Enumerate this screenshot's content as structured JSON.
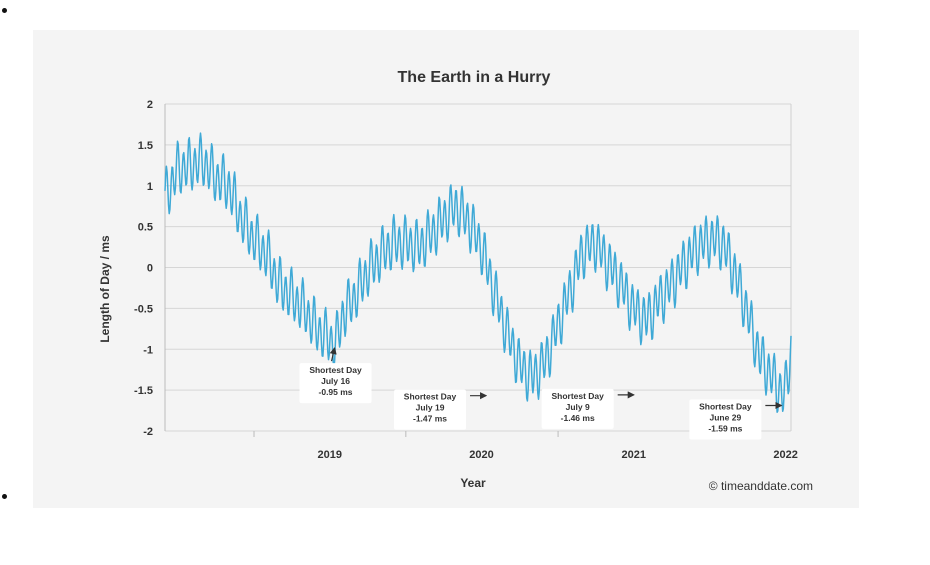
{
  "chart_data": {
    "type": "line",
    "title": "The Earth in a Hurry",
    "xlabel": "Year",
    "ylabel": "Length of Day / ms",
    "ylim": [
      -2,
      2
    ],
    "yticks": [
      "2",
      "1.5",
      "1",
      "0.5",
      "0",
      "-0.5",
      "-1",
      "-1.5",
      "-2"
    ],
    "xlim": [
      "2018-06-01",
      "2022-07-15"
    ],
    "xticks": [
      {
        "label": "2019",
        "date": "2019-01-01"
      },
      {
        "label": "2020",
        "date": "2020-01-01"
      },
      {
        "label": "2021",
        "date": "2021-01-01"
      },
      {
        "label": "2022",
        "date": "2022-01-01"
      }
    ],
    "grid": true,
    "series": [
      {
        "color": "#3fa9d6",
        "points": [
          [
            "2018-06-01",
            0.85
          ],
          [
            "2018-07-01",
            1.2
          ],
          [
            "2018-08-01",
            1.25
          ],
          [
            "2018-09-01",
            1.3
          ],
          [
            "2018-10-01",
            1.1
          ],
          [
            "2018-11-01",
            1.0
          ],
          [
            "2018-12-01",
            0.6
          ],
          [
            "2019-01-01",
            0.35
          ],
          [
            "2019-02-01",
            0.15
          ],
          [
            "2019-03-01",
            -0.2
          ],
          [
            "2019-04-01",
            -0.35
          ],
          [
            "2019-05-01",
            -0.5
          ],
          [
            "2019-06-01",
            -0.75
          ],
          [
            "2019-07-16",
            -0.95
          ],
          [
            "2019-08-01",
            -0.6
          ],
          [
            "2019-09-01",
            -0.35
          ],
          [
            "2019-10-01",
            -0.05
          ],
          [
            "2019-11-01",
            0.15
          ],
          [
            "2019-12-01",
            0.3
          ],
          [
            "2020-01-01",
            0.3
          ],
          [
            "2020-02-01",
            0.25
          ],
          [
            "2020-03-01",
            0.4
          ],
          [
            "2020-04-01",
            0.6
          ],
          [
            "2020-05-01",
            0.75
          ],
          [
            "2020-06-01",
            0.55
          ],
          [
            "2020-07-01",
            0.25
          ],
          [
            "2020-08-01",
            -0.3
          ],
          [
            "2020-09-01",
            -0.8
          ],
          [
            "2020-10-01",
            -1.2
          ],
          [
            "2020-11-01",
            -1.35
          ],
          [
            "2020-12-01",
            -1.15
          ],
          [
            "2021-01-01",
            -0.7
          ],
          [
            "2021-02-01",
            -0.25
          ],
          [
            "2021-03-01",
            0.2
          ],
          [
            "2021-04-01",
            0.3
          ],
          [
            "2021-05-01",
            0.05
          ],
          [
            "2021-06-01",
            -0.2
          ],
          [
            "2021-07-01",
            -0.5
          ],
          [
            "2021-08-01",
            -0.65
          ],
          [
            "2021-09-01",
            -0.4
          ],
          [
            "2021-10-01",
            -0.2
          ],
          [
            "2021-11-01",
            0.05
          ],
          [
            "2021-12-01",
            0.25
          ],
          [
            "2022-01-01",
            0.35
          ],
          [
            "2022-02-01",
            0.3
          ],
          [
            "2022-03-01",
            -0.05
          ],
          [
            "2022-04-01",
            -0.55
          ],
          [
            "2022-05-01",
            -1.1
          ],
          [
            "2022-06-01",
            -1.35
          ],
          [
            "2022-06-29",
            -1.59
          ],
          [
            "2022-07-15",
            -1.0
          ]
        ]
      }
    ],
    "annotations": [
      {
        "lines": [
          "Shortest Day",
          "July 16",
          "-0.95 ms"
        ],
        "date": "2019-07-16",
        "value": -0.95
      },
      {
        "lines": [
          "Shortest Day",
          "July 19",
          "-1.47 ms"
        ],
        "date": "2020-07-19",
        "value": -1.47
      },
      {
        "lines": [
          "Shortest Day",
          "July 9",
          "-1.46 ms"
        ],
        "date": "2021-07-09",
        "value": -1.46
      },
      {
        "lines": [
          "Shortest Day",
          "June 29",
          "-1.59 ms"
        ],
        "date": "2022-06-29",
        "value": -1.59
      }
    ],
    "credit": "© timeanddate.com"
  }
}
